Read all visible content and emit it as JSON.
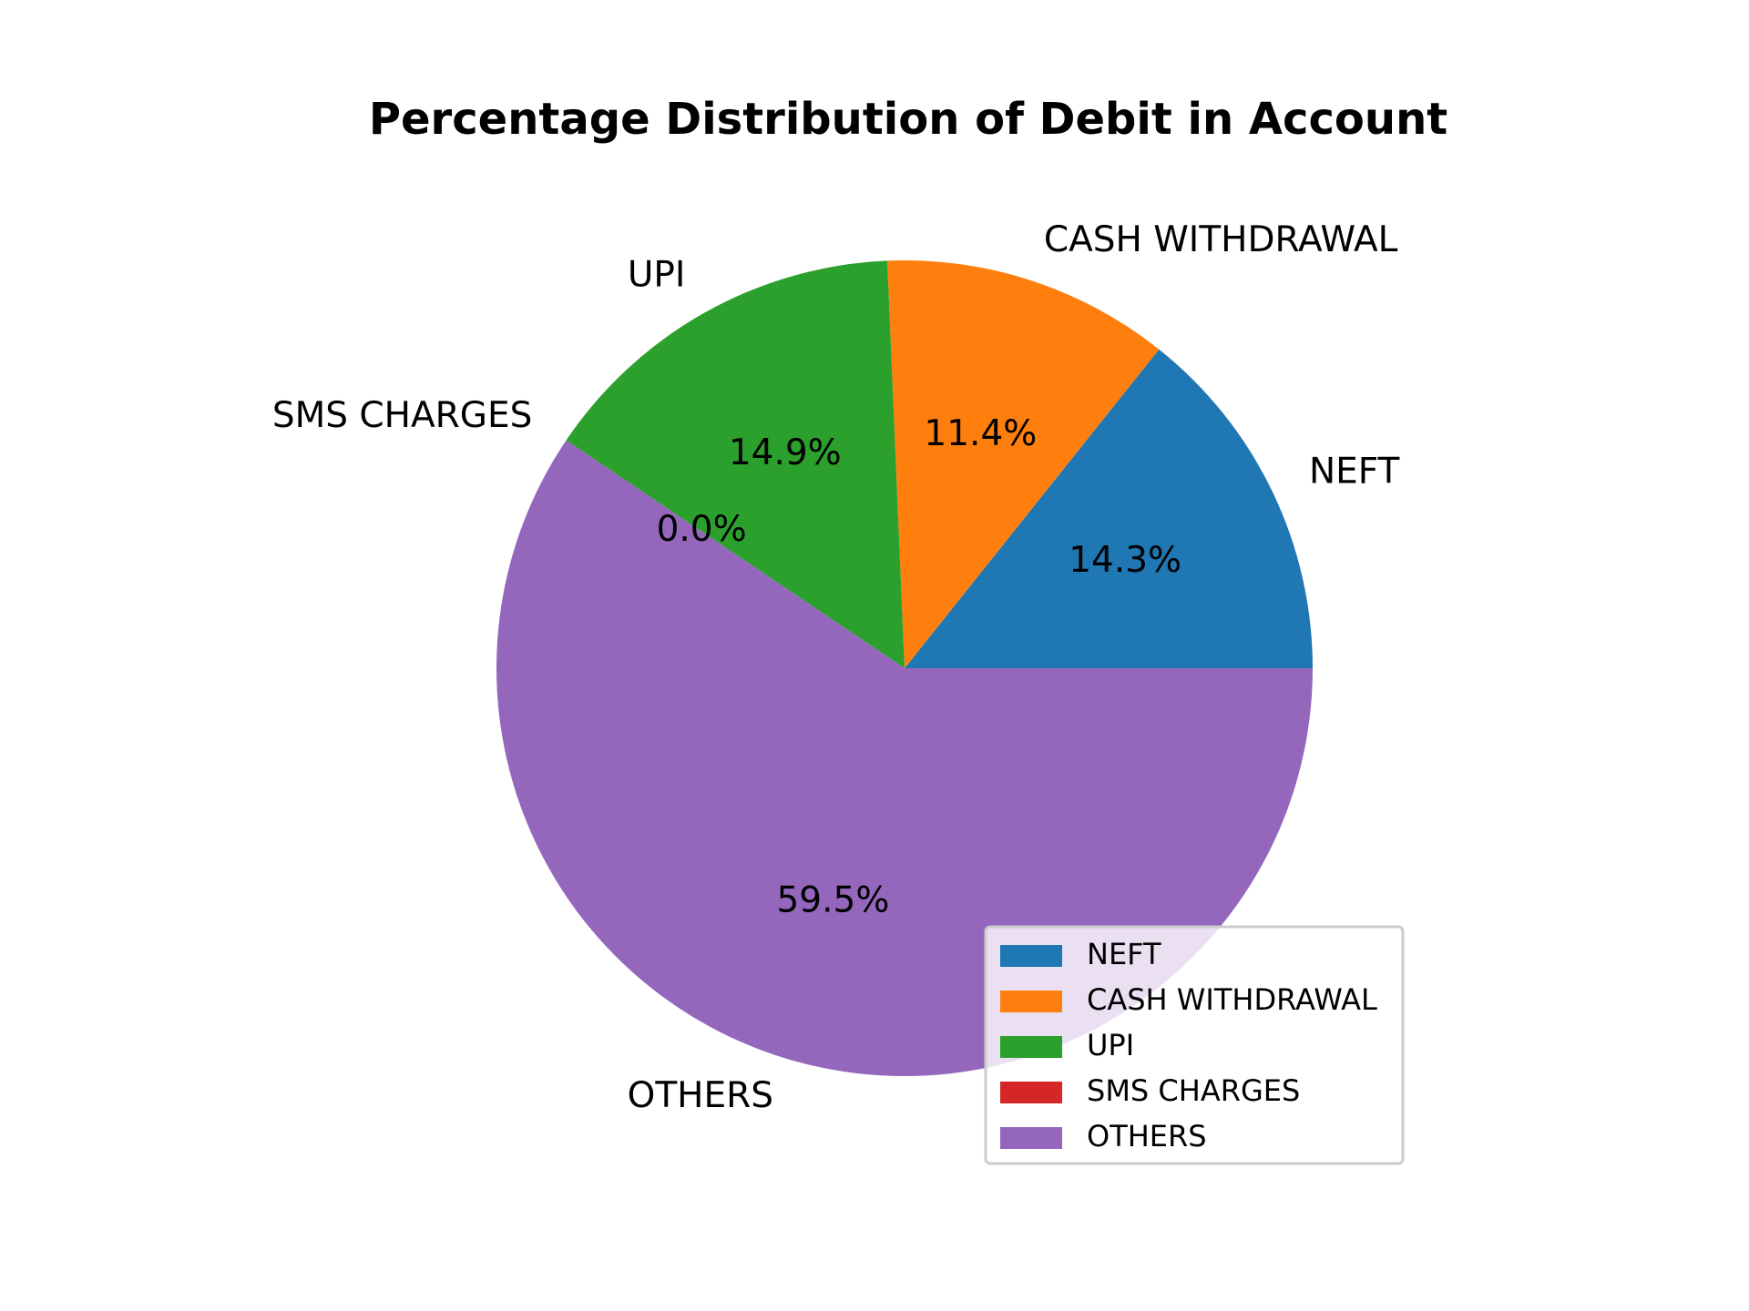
{
  "chart_data": {
    "type": "pie",
    "title": "Percentage Distribution of Debit in Account",
    "categories": [
      "NEFT",
      "CASH WITHDRAWAL",
      "UPI",
      "SMS CHARGES",
      "OTHERS"
    ],
    "values": [
      14.3,
      11.4,
      14.9,
      0.0,
      59.5
    ],
    "value_labels": [
      "14.3%",
      "11.4%",
      "14.9%",
      "0.0%",
      "59.5%"
    ],
    "colors": [
      "#1f77b4",
      "#ff7f0e",
      "#2ca02c",
      "#d62728",
      "#9467bd"
    ],
    "start_angle": 0,
    "direction": "counterclockwise",
    "legend": {
      "position": "lower-right",
      "entries": [
        "NEFT",
        "CASH WITHDRAWAL",
        "UPI",
        "SMS CHARGES",
        "OTHERS"
      ]
    }
  }
}
